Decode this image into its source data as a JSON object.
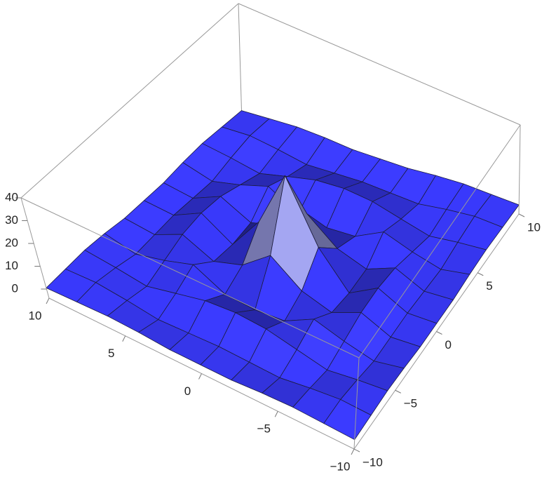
{
  "chart_data": {
    "type": "surface",
    "x": [
      -10,
      -8,
      -6,
      -4,
      -2,
      0,
      2,
      4,
      6,
      8,
      10
    ],
    "y": [
      -10,
      -8,
      -6,
      -4,
      -2,
      0,
      2,
      4,
      6,
      8,
      10
    ],
    "z": [
      [
        0.5,
        1,
        1.5,
        1,
        0,
        0,
        0,
        1,
        1.5,
        1,
        0.5
      ],
      [
        1,
        1.5,
        0,
        -2,
        -1.5,
        -1,
        -1.5,
        -2,
        0,
        1.5,
        1
      ],
      [
        1.5,
        0,
        -2,
        1,
        4,
        5,
        4,
        1,
        -2,
        0,
        1.5
      ],
      [
        1,
        -2,
        1,
        5,
        -2,
        -3,
        -2,
        5,
        1,
        -2,
        1
      ],
      [
        0,
        -1.5,
        4,
        -2,
        2,
        12,
        2,
        -2,
        4,
        -1.5,
        0
      ],
      [
        0,
        -1,
        5,
        -3,
        12,
        38,
        12,
        -3,
        5,
        -1,
        0
      ],
      [
        0,
        -1.5,
        4,
        -2,
        2,
        12,
        2,
        -2,
        4,
        -1.5,
        0
      ],
      [
        1,
        -2,
        1,
        5,
        -2,
        -3,
        -2,
        5,
        1,
        -2,
        1
      ],
      [
        1.5,
        0,
        -2,
        1,
        4,
        5,
        4,
        1,
        -2,
        0,
        1.5
      ],
      [
        1,
        1.5,
        0,
        -2,
        -1.5,
        -1,
        -1.5,
        -2,
        0,
        1.5,
        1
      ],
      [
        0.5,
        1,
        1.5,
        1,
        0,
        0,
        0,
        1,
        1.5,
        1,
        0.5
      ]
    ],
    "xlim": [
      -10,
      10
    ],
    "ylim": [
      -10,
      10
    ],
    "zlim": [
      -4,
      40
    ],
    "xticks": [
      {
        "value": -10,
        "label": "−10"
      },
      {
        "value": -5,
        "label": "−5"
      },
      0,
      5,
      10
    ],
    "yticks": [
      {
        "value": -10,
        "label": "−10"
      },
      {
        "value": -5,
        "label": "−5"
      },
      0,
      5,
      10
    ],
    "zticks": [
      0,
      10,
      20,
      30,
      40
    ]
  }
}
